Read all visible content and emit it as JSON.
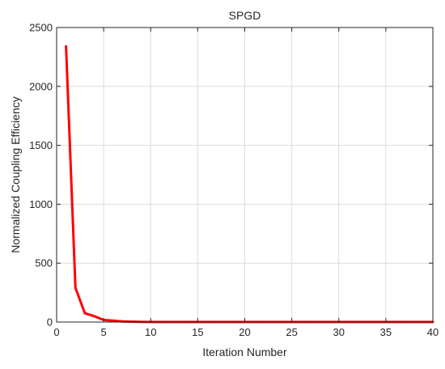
{
  "chart_data": {
    "type": "line",
    "title": "SPGD",
    "xlabel": "Iteration Number",
    "ylabel": "Normalized Coupling Efficiency",
    "xlim": [
      0,
      40
    ],
    "ylim": [
      0,
      2500
    ],
    "xticks": [
      0,
      5,
      10,
      15,
      20,
      25,
      30,
      35,
      40
    ],
    "yticks": [
      0,
      500,
      1000,
      1500,
      2000,
      2500
    ],
    "grid": true,
    "series": [
      {
        "color": "#ff0000",
        "x": [
          1,
          2,
          3,
          4,
          5,
          6,
          7,
          8,
          9,
          10,
          11,
          12,
          13,
          14,
          15,
          16,
          17,
          18,
          19,
          20,
          21,
          22,
          23,
          24,
          25,
          26,
          27,
          28,
          29,
          30,
          31,
          32,
          33,
          34,
          35,
          36,
          37,
          38,
          39,
          40
        ],
        "y": [
          2340,
          290,
          75,
          50,
          18,
          12,
          5,
          3,
          2,
          1,
          1,
          1,
          1,
          1,
          1,
          1,
          1,
          1,
          1,
          1,
          1,
          1,
          1,
          1,
          1,
          1,
          1,
          1,
          1,
          1,
          1,
          1,
          1,
          1,
          1,
          1,
          1,
          1,
          1,
          1
        ]
      }
    ]
  }
}
